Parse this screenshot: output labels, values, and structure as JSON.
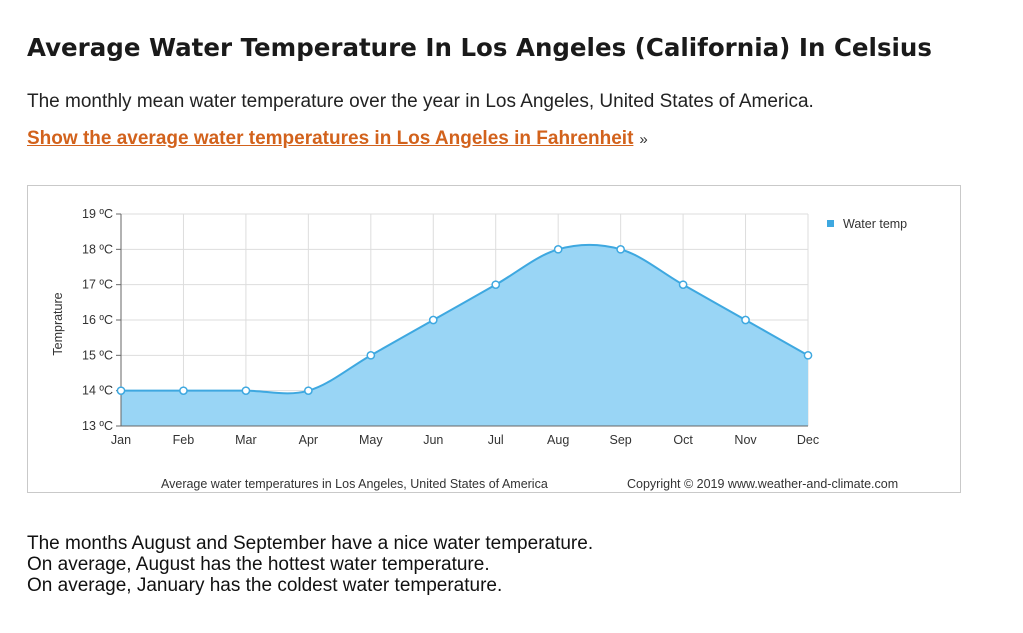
{
  "page": {
    "title": "Average Water Temperature In Los Angeles (California) In Celsius",
    "intro": "The monthly mean water temperature over the year in Los Angeles, United States of America.",
    "fahrenheit_link": "Show the average water temperatures in Los Angeles in Fahrenheit",
    "link_suffix": "»",
    "conclusions": [
      "The months August and September have a nice water temperature.",
      "On average, August has the hottest water temperature.",
      "On average, January has the coldest water temperature."
    ]
  },
  "colors": {
    "link": "#d2621c",
    "series_fill": "#99d5f5",
    "series_line": "#3ea8e0",
    "grid": "#dddddd"
  },
  "chart_data": {
    "type": "area",
    "categories": [
      "Jan",
      "Feb",
      "Mar",
      "Apr",
      "May",
      "Jun",
      "Jul",
      "Aug",
      "Sep",
      "Oct",
      "Nov",
      "Dec"
    ],
    "series": [
      {
        "name": "Water temp",
        "values": [
          14,
          14,
          14,
          14,
          15,
          16,
          17,
          18,
          18,
          17,
          16,
          15
        ]
      }
    ],
    "ylim": [
      13,
      19
    ],
    "yticks": [
      13,
      14,
      15,
      16,
      17,
      18,
      19
    ],
    "y_tick_suffix": " ºC",
    "ylabel": "Temprature",
    "xlabel": "",
    "legend_position": "top-right",
    "grid": true,
    "caption": "Average water temperatures in Los Angeles, United States of America",
    "copyright": "Copyright © 2019 www.weather-and-climate.com"
  }
}
